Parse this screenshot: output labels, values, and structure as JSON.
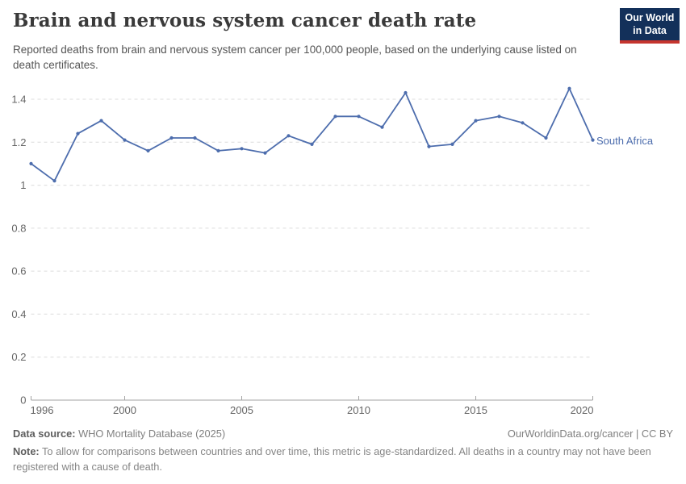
{
  "header": {
    "title": "Brain and nervous system cancer death rate",
    "subtitle": "Reported deaths from brain and nervous system cancer per 100,000 people, based on the underlying cause listed on death certificates.",
    "logo": {
      "line1": "Our World",
      "line2": "in Data",
      "bg_color": "#13305a",
      "accent_color": "#c5352e"
    }
  },
  "chart_data": {
    "type": "line",
    "title": "Brain and nervous system cancer death rate",
    "x": [
      1996,
      1997,
      1998,
      1999,
      2000,
      2001,
      2002,
      2003,
      2004,
      2005,
      2006,
      2007,
      2008,
      2009,
      2010,
      2011,
      2012,
      2013,
      2014,
      2015,
      2016,
      2017,
      2018,
      2019,
      2020
    ],
    "series": [
      {
        "name": "South Africa",
        "color": "#4d6dad",
        "values": [
          1.1,
          1.02,
          1.24,
          1.3,
          1.21,
          1.16,
          1.22,
          1.22,
          1.16,
          1.17,
          1.15,
          1.23,
          1.19,
          1.32,
          1.32,
          1.27,
          1.43,
          1.18,
          1.19,
          1.3,
          1.32,
          1.29,
          1.22,
          1.45,
          1.21
        ]
      }
    ],
    "xlabel": "",
    "ylabel": "",
    "xlim": [
      1996,
      2020
    ],
    "ylim": [
      0,
      1.4
    ],
    "x_ticks": [
      1996,
      2000,
      2005,
      2010,
      2015,
      2020
    ],
    "y_ticks": [
      0,
      0.2,
      0.4,
      0.6,
      0.8,
      1,
      1.2,
      1.4
    ],
    "y_tick_labels": [
      "0",
      "0.2",
      "0.4",
      "0.6",
      "0.8",
      "1",
      "1.2",
      "1.4"
    ],
    "grid": "horizontal-dashed",
    "legend_position": "end-of-line-label",
    "grid_color": "#dcdcdc",
    "axis_color": "#a3a3a3",
    "tick_label_color": "#666666"
  },
  "footer": {
    "data_source_label": "Data source:",
    "data_source_value": "WHO Mortality Database (2025)",
    "attribution": "OurWorldinData.org/cancer | CC BY",
    "note_label": "Note:",
    "note_text": "To allow for comparisons between countries and over time, this metric is age-standardized. All deaths in a country may not have been registered with a cause of death."
  }
}
